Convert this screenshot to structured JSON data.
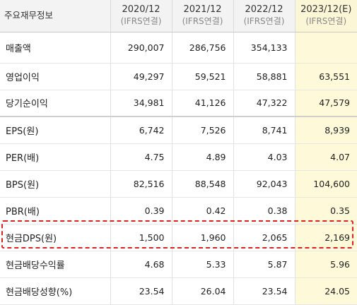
{
  "table": {
    "header": {
      "label": "주요재무정보",
      "columns": [
        {
          "year": "2020/12",
          "standard": "(IFRS연결)"
        },
        {
          "year": "2021/12",
          "standard": "(IFRS연결)"
        },
        {
          "year": "2022/12",
          "standard": "(IFRS연결)"
        },
        {
          "year": "2023/12(E)",
          "standard": "(IFRS연결)"
        }
      ]
    },
    "rows": [
      {
        "label": "매출액",
        "values": [
          "290,007",
          "286,756",
          "354,133",
          ""
        ]
      },
      {
        "label": "영업이익",
        "values": [
          "49,297",
          "59,521",
          "58,881",
          "63,551"
        ]
      },
      {
        "label": "당기순이익",
        "values": [
          "34,981",
          "41,126",
          "47,322",
          "47,579"
        ]
      },
      {
        "label": "EPS(원)",
        "values": [
          "6,742",
          "7,526",
          "8,741",
          "8,939"
        ]
      },
      {
        "label": "PER(배)",
        "values": [
          "4.75",
          "4.89",
          "4.03",
          "4.07"
        ]
      },
      {
        "label": "BPS(원)",
        "values": [
          "82,516",
          "88,548",
          "92,043",
          "104,600"
        ]
      },
      {
        "label": "PBR(배)",
        "values": [
          "0.39",
          "0.42",
          "0.38",
          "0.35"
        ]
      },
      {
        "label": "현금DPS(원)",
        "values": [
          "1,500",
          "1,960",
          "2,065",
          "2,169"
        ]
      },
      {
        "label": "현금배당수익률",
        "values": [
          "4.68",
          "5.33",
          "5.87",
          "5.96"
        ]
      },
      {
        "label": "현금배당성향(%)",
        "values": [
          "23.54",
          "26.04",
          "23.54",
          "24.05"
        ]
      }
    ]
  },
  "colors": {
    "header_bg": "#f3f3f3",
    "estimate_bg": "#fdf9d9",
    "highlight_border": "#e02020"
  }
}
